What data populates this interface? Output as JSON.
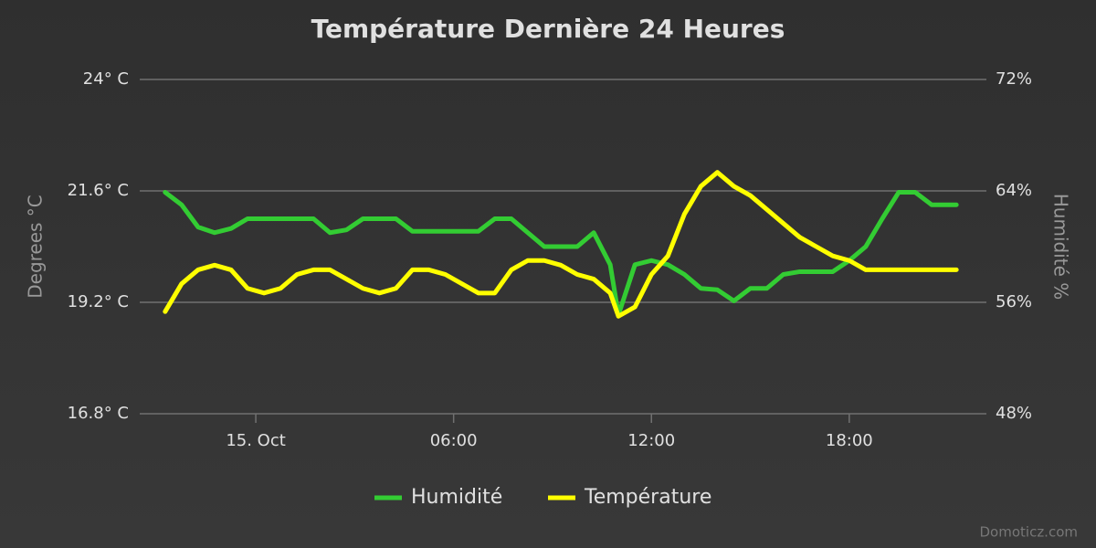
{
  "chart_data": {
    "type": "line",
    "title": "Température Dernière 24 Heures",
    "y_label": "Degrees °C",
    "y2_label": "Humidité %",
    "credits": "Domoticz.com",
    "x": [
      -2.75,
      -2.25,
      -1.75,
      -1.25,
      -0.75,
      -0.25,
      0.25,
      0.75,
      1.25,
      1.75,
      2.25,
      2.75,
      3.25,
      3.75,
      4.25,
      4.75,
      5.25,
      5.75,
      6.25,
      6.75,
      7.25,
      7.75,
      8.25,
      8.75,
      9.25,
      9.75,
      10.25,
      10.75,
      11,
      11.5,
      12,
      12.5,
      13,
      13.5,
      14,
      14.5,
      15,
      15.5,
      16,
      16.5,
      17,
      17.5,
      18,
      18.5,
      19,
      19.5,
      20,
      20.5,
      21,
      21.25
    ],
    "series": [
      {
        "name": "Humidité",
        "color": "#33cc33",
        "axis": "y2",
        "values": [
          63.9,
          63.0,
          61.4,
          61.0,
          61.3,
          62.0,
          62.0,
          62.0,
          62.0,
          62.0,
          61.0,
          61.2,
          62.0,
          62.0,
          62.0,
          61.1,
          61.1,
          61.1,
          61.1,
          61.1,
          62.0,
          62.0,
          61.0,
          60.0,
          60.0,
          60.0,
          61.0,
          58.7,
          55.1,
          58.7,
          59.0,
          58.7,
          58.0,
          57.0,
          56.9,
          56.1,
          57.0,
          57.0,
          58.0,
          58.2,
          58.2,
          58.2,
          59.0,
          60.0,
          62.0,
          63.9,
          63.9,
          63.0,
          63.0,
          63.0
        ]
      },
      {
        "name": "Température",
        "color": "#ffff00",
        "values": [
          19.0,
          19.6,
          19.9,
          20.0,
          19.9,
          19.5,
          19.4,
          19.5,
          19.8,
          19.9,
          19.9,
          19.7,
          19.5,
          19.4,
          19.5,
          19.9,
          19.9,
          19.8,
          19.6,
          19.4,
          19.4,
          19.9,
          20.1,
          20.1,
          20.0,
          19.8,
          19.7,
          19.4,
          18.9,
          19.1,
          19.8,
          20.2,
          21.1,
          21.7,
          22.0,
          21.7,
          21.5,
          21.2,
          20.9,
          20.6,
          20.4,
          20.2,
          20.1,
          19.9,
          19.9,
          19.9,
          19.9,
          19.9,
          19.9,
          19.9
        ]
      }
    ],
    "xlim": [
      -3.52,
      22.16
    ],
    "xticks": [
      {
        "value": 0,
        "label": "15. Oct"
      },
      {
        "value": 6,
        "label": "06:00"
      },
      {
        "value": 12,
        "label": "12:00"
      },
      {
        "value": 18,
        "label": "18:00"
      }
    ],
    "ylim": [
      16.8,
      24
    ],
    "yticks": [
      {
        "value": 16.8,
        "label": "16.8° C"
      },
      {
        "value": 19.2,
        "label": "19.2° C"
      },
      {
        "value": 21.6,
        "label": "21.6° C"
      },
      {
        "value": 24,
        "label": "24° C"
      }
    ],
    "y2lim": [
      48,
      72
    ],
    "y2ticks": [
      {
        "value": 48,
        "label": "48%"
      },
      {
        "value": 56,
        "label": "56%"
      },
      {
        "value": 64,
        "label": "64%"
      },
      {
        "value": 72,
        "label": "72%"
      }
    ],
    "grid": true,
    "legend": "bottom"
  }
}
